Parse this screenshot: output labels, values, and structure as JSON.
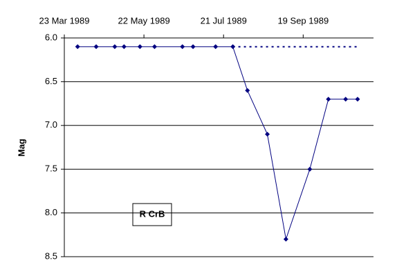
{
  "chart_data": {
    "type": "line",
    "y_label": "Mag",
    "annotation": "R CrB",
    "xlim": [
      "1989-03-23",
      "1989-11-11"
    ],
    "xticks": [
      {
        "value": "1989-03-23",
        "label": "23 Mar 1989"
      },
      {
        "value": "1989-05-22",
        "label": "22 May 1989"
      },
      {
        "value": "1989-07-21",
        "label": "21 Jul 1989"
      },
      {
        "value": "1989-09-19",
        "label": "19 Sep 1989"
      }
    ],
    "ylim": [
      6,
      8.5
    ],
    "y_inverted": true,
    "yticks": [
      {
        "value": 6,
        "label": "6.0"
      },
      {
        "value": 6.5,
        "label": "6.5"
      },
      {
        "value": 7,
        "label": "7.0"
      },
      {
        "value": 7.5,
        "label": "7.5"
      },
      {
        "value": 8,
        "label": "8.0"
      },
      {
        "value": 8.5,
        "label": "8.5"
      }
    ],
    "grid": true,
    "series": [
      {
        "color": "#000080",
        "style": "solid",
        "markers": true,
        "x": [
          "1989-04-02",
          "1989-04-16",
          "1989-04-30",
          "1989-05-07",
          "1989-05-19",
          "1989-05-30",
          "1989-06-20",
          "1989-06-28",
          "1989-07-15",
          "1989-07-28",
          "1989-08-08",
          "1989-08-23",
          "1989-09-06",
          "1989-09-24",
          "1989-10-08",
          "1989-10-21",
          "1989-10-30"
        ],
        "values": [
          6.1,
          6.1,
          6.1,
          6.1,
          6.1,
          6.1,
          6.1,
          6.1,
          6.1,
          6.1,
          6.6,
          7.1,
          8.3,
          7.5,
          6.7,
          6.7,
          6.7
        ]
      },
      {
        "color": "#000080",
        "style": "dotted",
        "markers": false,
        "x": [
          "1989-07-28",
          "1989-10-30"
        ],
        "values": [
          6.1,
          6.1
        ]
      }
    ]
  }
}
